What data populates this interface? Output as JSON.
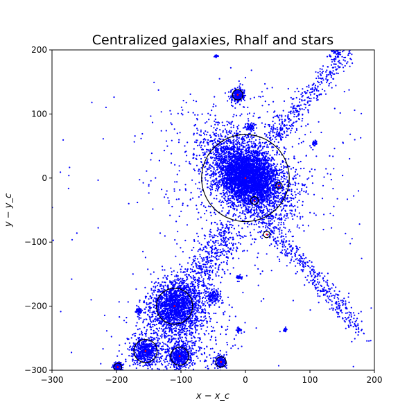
{
  "chart_data": {
    "type": "scatter",
    "title": "Centralized galaxies, Rhalf and stars",
    "xlabel": "x − x_c",
    "ylabel": "y − y_c",
    "xlim": [
      -300,
      200
    ],
    "ylim": [
      -300,
      200
    ],
    "xticks": [
      -300,
      -200,
      -100,
      0,
      100,
      200
    ],
    "yticks": [
      -300,
      -200,
      -100,
      0,
      100,
      200
    ],
    "grid": false,
    "colors": {
      "stars": "#0000ff",
      "centers": "#ff0000",
      "rhalf": "#000000"
    },
    "galaxies": [
      {
        "x": 0,
        "y": 0,
        "rhalf": 68
      },
      {
        "x": -110,
        "y": -200,
        "rhalf": 28
      },
      {
        "x": -155,
        "y": -270,
        "rhalf": 18
      },
      {
        "x": -102,
        "y": -278,
        "rhalf": 14
      },
      {
        "x": 52,
        "y": -12,
        "rhalf": 5
      },
      {
        "x": 14,
        "y": -35,
        "rhalf": 6
      },
      {
        "x": 33,
        "y": -88,
        "rhalf": 5
      },
      {
        "x": -12,
        "y": 130,
        "rhalf": 8
      },
      {
        "x": -38,
        "y": -287,
        "rhalf": 8
      },
      {
        "x": -198,
        "y": -295,
        "rhalf": 6
      }
    ],
    "clumps": [
      {
        "x": -12,
        "y": 130,
        "r": 10,
        "n": 220
      },
      {
        "x": -38,
        "y": -287,
        "r": 9,
        "n": 160
      },
      {
        "x": -198,
        "y": -295,
        "r": 7,
        "n": 120
      },
      {
        "x": -110,
        "y": -200,
        "r": 35,
        "n": 1500
      },
      {
        "x": -155,
        "y": -270,
        "r": 20,
        "n": 500
      },
      {
        "x": -102,
        "y": -278,
        "r": 18,
        "n": 450
      },
      {
        "x": 107,
        "y": 55,
        "r": 4,
        "n": 30
      },
      {
        "x": -165,
        "y": -208,
        "r": 5,
        "n": 40
      },
      {
        "x": 62,
        "y": -237,
        "r": 3,
        "n": 25
      },
      {
        "x": -50,
        "y": -185,
        "r": 10,
        "n": 120
      },
      {
        "x": -10,
        "y": -155,
        "r": 4,
        "n": 25
      },
      {
        "x": -10,
        "y": -237,
        "r": 4,
        "n": 25
      },
      {
        "x": -45,
        "y": 190,
        "r": 3,
        "n": 15
      },
      {
        "x": 140,
        "y": 200,
        "r": 8,
        "n": 40
      },
      {
        "x": 7,
        "y": 80,
        "r": 6,
        "n": 60
      }
    ]
  }
}
